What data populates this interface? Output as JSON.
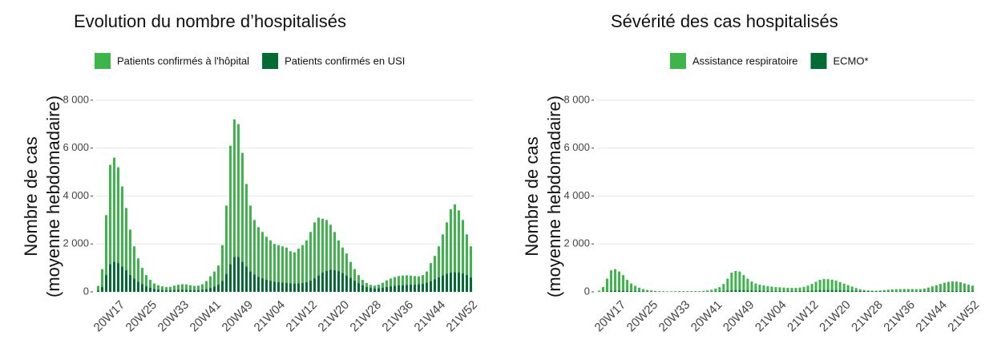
{
  "chart_data": [
    {
      "type": "bar",
      "title": "Evolution du nombre d’hospitalisés",
      "ylabel": [
        "Nombre de cas",
        "(moyenne hebdomadaire)"
      ],
      "categories": [
        null,
        null,
        null,
        null,
        null,
        "20W17",
        null,
        null,
        null,
        null,
        null,
        null,
        null,
        "20W25",
        null,
        null,
        null,
        null,
        null,
        null,
        null,
        "20W33",
        null,
        null,
        null,
        null,
        null,
        null,
        null,
        "20W41",
        null,
        null,
        null,
        null,
        null,
        null,
        null,
        "20W49",
        null,
        null,
        null,
        null,
        null,
        null,
        null,
        "21W04",
        null,
        null,
        null,
        null,
        null,
        null,
        null,
        "21W12",
        null,
        null,
        null,
        null,
        null,
        null,
        null,
        "21W20",
        null,
        null,
        null,
        null,
        null,
        null,
        null,
        "21W28",
        null,
        null,
        null,
        null,
        null,
        null,
        null,
        "21W36",
        null,
        null,
        null,
        null,
        null,
        null,
        null,
        "21W44",
        null,
        null,
        null,
        null,
        null,
        null,
        null,
        "21W52"
      ],
      "series": [
        {
          "name": "Patients confirmés à l'hôpital",
          "color": "#3db54a",
          "values": [
            250,
            950,
            3200,
            5300,
            5600,
            5200,
            4400,
            3500,
            2600,
            1900,
            1400,
            1000,
            700,
            500,
            350,
            280,
            230,
            200,
            210,
            260,
            300,
            320,
            310,
            280,
            250,
            260,
            320,
            450,
            650,
            850,
            1100,
            1950,
            3600,
            6100,
            7200,
            7000,
            5800,
            4500,
            3600,
            3000,
            2700,
            2500,
            2300,
            2150,
            2000,
            1950,
            1900,
            1850,
            1700,
            1650,
            1800,
            1950,
            2150,
            2500,
            2900,
            3100,
            3050,
            3000,
            2800,
            2500,
            2150,
            1850,
            1600,
            1250,
            950,
            700,
            500,
            370,
            290,
            260,
            300,
            380,
            480,
            560,
            620,
            660,
            680,
            690,
            680,
            660,
            650,
            700,
            850,
            1200,
            1500,
            1900,
            2400,
            2900,
            3450,
            3650,
            3400,
            3000,
            2400,
            1900
          ]
        },
        {
          "name": "Patients confirmés en USI",
          "color": "#006b32",
          "values": [
            50,
            200,
            700,
            1150,
            1250,
            1200,
            1050,
            900,
            700,
            550,
            420,
            320,
            230,
            170,
            120,
            90,
            70,
            60,
            60,
            70,
            80,
            80,
            80,
            70,
            70,
            70,
            80,
            110,
            160,
            220,
            300,
            450,
            750,
            1150,
            1450,
            1450,
            1250,
            1050,
            850,
            720,
            620,
            560,
            500,
            460,
            420,
            400,
            380,
            370,
            350,
            340,
            350,
            370,
            400,
            460,
            560,
            680,
            800,
            870,
            920,
            900,
            860,
            780,
            680,
            580,
            460,
            360,
            270,
            200,
            160,
            140,
            150,
            170,
            200,
            230,
            250,
            270,
            280,
            290,
            300,
            300,
            310,
            330,
            380,
            440,
            520,
            600,
            680,
            750,
            800,
            820,
            810,
            770,
            700,
            600
          ]
        }
      ],
      "ylim": [
        0,
        8500
      ],
      "yticks": [
        0,
        {
          "value": 2000,
          "label": "2 000"
        },
        {
          "value": 4000,
          "label": "4 000"
        },
        {
          "value": 6000,
          "label": "6 000"
        },
        {
          "value": 8000,
          "label": "8 000"
        }
      ],
      "grid": true
    },
    {
      "type": "bar",
      "title": "Sévérité des cas hospitalisés",
      "ylabel": [
        "Nombre de cas",
        "(moyenne hebdomadaire)"
      ],
      "categories": [
        null,
        null,
        null,
        null,
        null,
        "20W17",
        null,
        null,
        null,
        null,
        null,
        null,
        null,
        "20W25",
        null,
        null,
        null,
        null,
        null,
        null,
        null,
        "20W33",
        null,
        null,
        null,
        null,
        null,
        null,
        null,
        "20W41",
        null,
        null,
        null,
        null,
        null,
        null,
        null,
        "20W49",
        null,
        null,
        null,
        null,
        null,
        null,
        null,
        "21W04",
        null,
        null,
        null,
        null,
        null,
        null,
        null,
        "21W12",
        null,
        null,
        null,
        null,
        null,
        null,
        null,
        "21W20",
        null,
        null,
        null,
        null,
        null,
        null,
        null,
        "21W28",
        null,
        null,
        null,
        null,
        null,
        null,
        null,
        "21W36",
        null,
        null,
        null,
        null,
        null,
        null,
        null,
        "21W44",
        null,
        null,
        null,
        null,
        null,
        null,
        null,
        "21W52"
      ],
      "series": [
        {
          "name": "Assistance respiratoire",
          "color": "#3db54a",
          "values": [
            50,
            200,
            550,
            900,
            950,
            850,
            700,
            500,
            350,
            250,
            170,
            120,
            80,
            60,
            40,
            30,
            25,
            20,
            20,
            25,
            30,
            30,
            30,
            30,
            30,
            30,
            40,
            60,
            90,
            140,
            200,
            330,
            550,
            800,
            870,
            850,
            700,
            550,
            430,
            350,
            300,
            270,
            240,
            220,
            200,
            190,
            180,
            170,
            165,
            165,
            180,
            210,
            260,
            330,
            420,
            500,
            540,
            530,
            510,
            470,
            410,
            340,
            280,
            220,
            160,
            110,
            80,
            60,
            50,
            50,
            60,
            75,
            90,
            100,
            110,
            115,
            120,
            120,
            120,
            115,
            120,
            140,
            180,
            230,
            280,
            330,
            380,
            420,
            440,
            430,
            400,
            350,
            300,
            260
          ]
        },
        {
          "name": "ECMO*",
          "color": "#006b32",
          "values": [
            0,
            5,
            20,
            40,
            50,
            50,
            45,
            40,
            35,
            30,
            25,
            20,
            15,
            12,
            10,
            8,
            6,
            5,
            5,
            5,
            5,
            5,
            5,
            5,
            5,
            5,
            5,
            8,
            10,
            15,
            20,
            30,
            45,
            60,
            70,
            70,
            65,
            60,
            55,
            50,
            45,
            40,
            38,
            35,
            33,
            32,
            30,
            30,
            30,
            30,
            32,
            35,
            40,
            45,
            55,
            65,
            70,
            70,
            68,
            65,
            60,
            55,
            50,
            45,
            40,
            35,
            30,
            25,
            20,
            18,
            16,
            15,
            15,
            15,
            15,
            15,
            15,
            15,
            16,
            16,
            17,
            18,
            20,
            22,
            25,
            28,
            30,
            32,
            34,
            34,
            33,
            32,
            30,
            28
          ]
        }
      ],
      "ylim": [
        0,
        8500
      ],
      "yticks": [
        0,
        {
          "value": 2000,
          "label": "2 000"
        },
        {
          "value": 4000,
          "label": "4 000"
        },
        {
          "value": 6000,
          "label": "6 000"
        },
        {
          "value": 8000,
          "label": "8 000"
        }
      ],
      "grid": true
    }
  ]
}
